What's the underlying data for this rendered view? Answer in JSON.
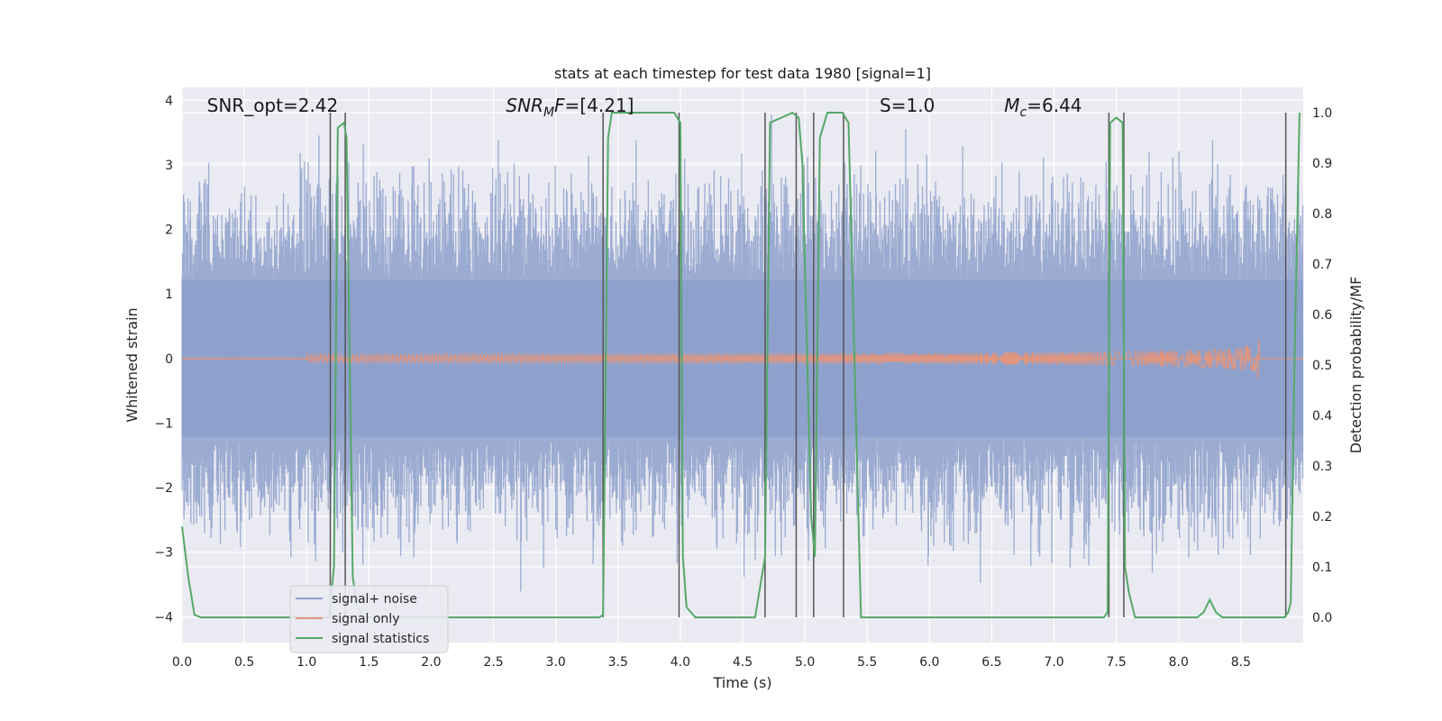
{
  "chart_data": {
    "type": "line",
    "title": "stats at each timestep for test data 1980 [signal=1]",
    "xlabel": "Time (s)",
    "ylabel": "Whitened strain",
    "y2label": "Detection probability/MF",
    "xlim": [
      0.0,
      9.0
    ],
    "ylim": [
      -4.4,
      4.2
    ],
    "y2lim": [
      -0.05,
      1.05
    ],
    "x_ticks": [
      "0.0",
      "0.5",
      "1.0",
      "1.5",
      "2.0",
      "2.5",
      "3.0",
      "3.5",
      "4.0",
      "4.5",
      "5.0",
      "5.5",
      "6.0",
      "6.5",
      "7.0",
      "7.5",
      "8.0",
      "8.5"
    ],
    "y_ticks": [
      "4",
      "3",
      "2",
      "1",
      "0",
      "−1",
      "−2",
      "−3",
      "−4"
    ],
    "y2_ticks": [
      "1.0",
      "0.9",
      "0.8",
      "0.7",
      "0.6",
      "0.5",
      "0.4",
      "0.3",
      "0.2",
      "0.1",
      "0.0"
    ],
    "grid": true,
    "legend_placement": "lower-left",
    "annotations": [
      {
        "text": "SNR_opt=2.42",
        "x": 0.2
      },
      {
        "text": "SNR_MF=[4.21]",
        "x": 2.6
      },
      {
        "text": "S=1.0",
        "x": 5.6
      },
      {
        "text": "M_c=6.44",
        "x": 6.6
      }
    ],
    "series": [
      {
        "name": "signal+ noise",
        "color": "#8da0cb",
        "kind": "noise",
        "x_range": [
          0.0,
          9.0
        ],
        "envelope_y": [
          -2.2,
          2.2
        ],
        "peak_y": [
          -3.9,
          3.8
        ]
      },
      {
        "name": "signal only",
        "color": "#e5957a",
        "kind": "chirp",
        "x_range": [
          0.0,
          8.65
        ],
        "final_amplitude": 0.3
      },
      {
        "name": "signal statistics",
        "color": "#55a868",
        "kind": "line",
        "axis": "y2",
        "x": [
          0.0,
          0.05,
          0.1,
          0.15,
          1.18,
          1.22,
          1.25,
          1.3,
          1.32,
          1.37,
          1.4,
          1.45,
          3.35,
          3.38,
          3.42,
          3.45,
          3.95,
          4.0,
          4.02,
          4.05,
          4.12,
          4.6,
          4.68,
          4.72,
          4.9,
          4.95,
          4.98,
          5.05,
          5.08,
          5.12,
          5.18,
          5.3,
          5.35,
          5.45,
          7.4,
          7.43,
          7.45,
          7.5,
          7.55,
          7.57,
          7.6,
          7.65,
          7.7,
          8.15,
          8.2,
          8.25,
          8.3,
          8.35,
          8.4,
          8.85,
          8.88,
          8.9,
          8.93,
          8.97
        ],
        "y": [
          0.18,
          0.08,
          0.005,
          0.0,
          0.0,
          0.1,
          0.97,
          0.98,
          0.95,
          0.08,
          0.03,
          0.0,
          0.0,
          0.005,
          0.95,
          1.0,
          1.0,
          0.98,
          0.12,
          0.02,
          0.0,
          0.0,
          0.12,
          0.98,
          1.0,
          0.99,
          0.9,
          0.2,
          0.12,
          0.95,
          1.0,
          1.0,
          0.98,
          0.0,
          0.0,
          0.01,
          0.98,
          0.99,
          0.98,
          0.1,
          0.05,
          0.0,
          0.0,
          0.0,
          0.01,
          0.035,
          0.01,
          0.0,
          0.0,
          0.0,
          0.01,
          0.03,
          0.5,
          1.0
        ]
      }
    ],
    "marker_lines_x": [
      1.19,
      1.31,
      3.38,
      3.99,
      4.68,
      4.93,
      5.07,
      5.31,
      7.44,
      7.56,
      8.86
    ]
  },
  "legend": {
    "items": [
      {
        "label": "signal+ noise",
        "color": "#8da0cb"
      },
      {
        "label": "signal only",
        "color": "#e5957a"
      },
      {
        "label": "signal statistics",
        "color": "#55a868"
      }
    ]
  }
}
